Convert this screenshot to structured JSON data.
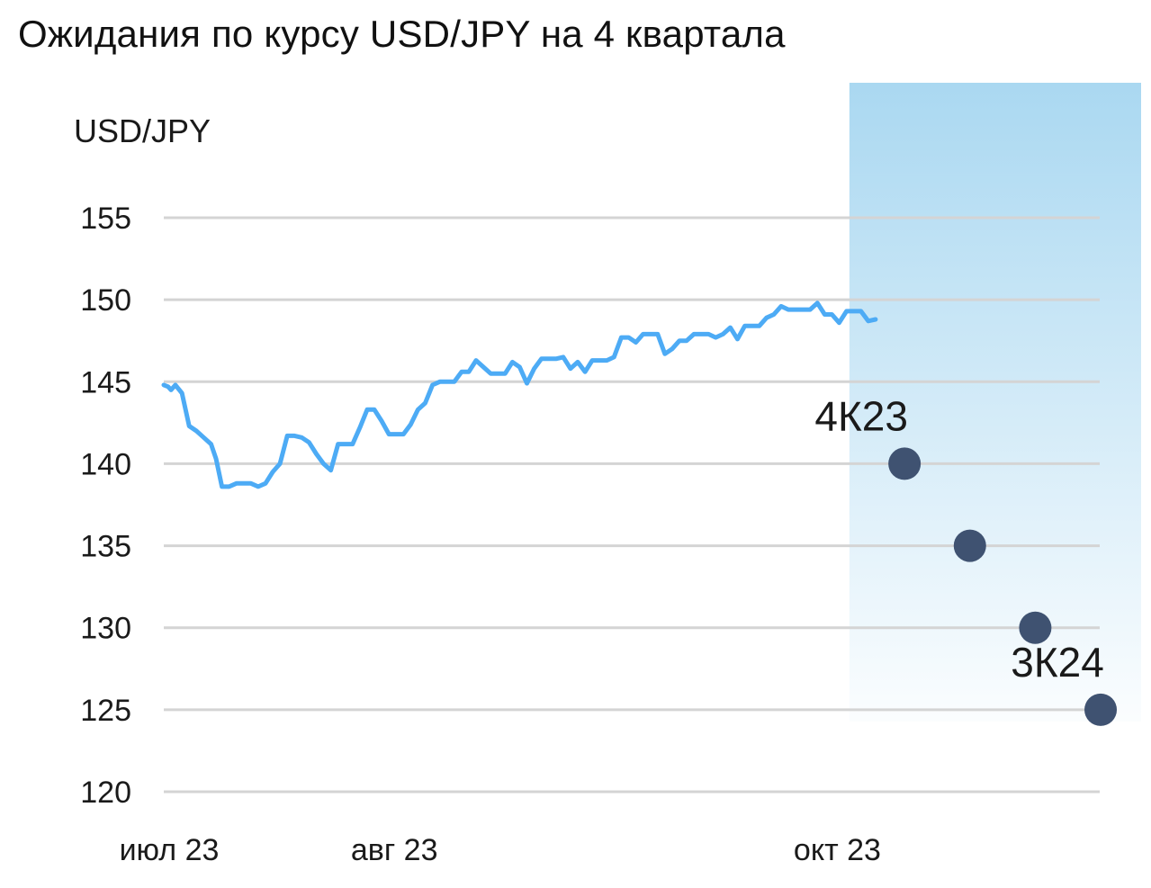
{
  "chart_data": {
    "type": "line",
    "title": "Ожидания по курсу USD/JPY на 4 квартала",
    "ylabel": "USD/JPY",
    "xlabel": "",
    "ylim": [
      120,
      155
    ],
    "y_ticks": [
      "155",
      "150",
      "145",
      "140",
      "135",
      "130",
      "125",
      "120"
    ],
    "x_ticks": [
      {
        "label": "июл 23",
        "t": 0
      },
      {
        "label": "авг 23",
        "t": 31
      },
      {
        "label": "окт 23",
        "t": 92
      }
    ],
    "grid": true,
    "series": [
      {
        "type": "line",
        "color": "#4dabf5",
        "points": [
          [
            0,
            144.8
          ],
          [
            0.6,
            144.7
          ],
          [
            1,
            144.5
          ],
          [
            1.6,
            144.8
          ],
          [
            2.5,
            144.3
          ],
          [
            3.5,
            142.3
          ],
          [
            4.5,
            142
          ],
          [
            5.5,
            141.6
          ],
          [
            6.5,
            141.2
          ],
          [
            7.2,
            140.3
          ],
          [
            8,
            138.6
          ],
          [
            9,
            138.6
          ],
          [
            10,
            138.8
          ],
          [
            11,
            138.8
          ],
          [
            12,
            138.8
          ],
          [
            13,
            138.6
          ],
          [
            14,
            138.8
          ],
          [
            15,
            139.5
          ],
          [
            16,
            140
          ],
          [
            17,
            141.7
          ],
          [
            18,
            141.7
          ],
          [
            19,
            141.6
          ],
          [
            20,
            141.3
          ],
          [
            21,
            140.6
          ],
          [
            22,
            140
          ],
          [
            23,
            139.6
          ],
          [
            24,
            141.2
          ],
          [
            25,
            141.2
          ],
          [
            26,
            141.2
          ],
          [
            27,
            142.2
          ],
          [
            28,
            143.3
          ],
          [
            29,
            143.3
          ],
          [
            30,
            142.6
          ],
          [
            31,
            141.8
          ],
          [
            32,
            141.8
          ],
          [
            33,
            141.8
          ],
          [
            34,
            142.4
          ],
          [
            35,
            143.3
          ],
          [
            36,
            143.7
          ],
          [
            37,
            144.8
          ],
          [
            38,
            145
          ],
          [
            39,
            145
          ],
          [
            40,
            145
          ],
          [
            41,
            145.6
          ],
          [
            42,
            145.6
          ],
          [
            43,
            146.3
          ],
          [
            44,
            145.9
          ],
          [
            45,
            145.5
          ],
          [
            46,
            145.5
          ],
          [
            47,
            145.5
          ],
          [
            48,
            146.2
          ],
          [
            49,
            145.9
          ],
          [
            50,
            144.9
          ],
          [
            51,
            145.8
          ],
          [
            52,
            146.4
          ],
          [
            53,
            146.4
          ],
          [
            54,
            146.4
          ],
          [
            55,
            146.5
          ],
          [
            56,
            145.8
          ],
          [
            57,
            146.2
          ],
          [
            58,
            145.6
          ],
          [
            59,
            146.3
          ],
          [
            60,
            146.3
          ],
          [
            61,
            146.3
          ],
          [
            62,
            146.5
          ],
          [
            63,
            147.7
          ],
          [
            64,
            147.7
          ],
          [
            65,
            147.4
          ],
          [
            66,
            147.9
          ],
          [
            67,
            147.9
          ],
          [
            68,
            147.9
          ],
          [
            69,
            146.7
          ],
          [
            70,
            147
          ],
          [
            71,
            147.5
          ],
          [
            72,
            147.5
          ],
          [
            73,
            147.9
          ],
          [
            74,
            147.9
          ],
          [
            75,
            147.9
          ],
          [
            76,
            147.7
          ],
          [
            77,
            147.9
          ],
          [
            78,
            148.3
          ],
          [
            79,
            147.6
          ],
          [
            80,
            148.4
          ],
          [
            81,
            148.4
          ],
          [
            82,
            148.4
          ],
          [
            83,
            148.9
          ],
          [
            84,
            149.1
          ],
          [
            85,
            149.6
          ],
          [
            86,
            149.4
          ],
          [
            87,
            149.4
          ],
          [
            88,
            149.4
          ],
          [
            89,
            149.4
          ],
          [
            90,
            149.8
          ],
          [
            91,
            149.1
          ],
          [
            92,
            149.1
          ],
          [
            93,
            148.6
          ],
          [
            94,
            149.3
          ],
          [
            95,
            149.3
          ],
          [
            96,
            149.3
          ],
          [
            97,
            148.7
          ],
          [
            98,
            148.8
          ]
        ]
      },
      {
        "type": "scatter",
        "color": "#3f5271",
        "points": [
          [
            102,
            140
          ],
          [
            111,
            135
          ],
          [
            120,
            130
          ],
          [
            129,
            125
          ]
        ]
      }
    ],
    "annotations": [
      {
        "text": "4К23",
        "t": 102,
        "y": 140
      },
      {
        "text": "3К24",
        "t": 129,
        "y": 125
      }
    ],
    "forecast_shading": {
      "from_t": 98,
      "color": "#aad8f1"
    }
  }
}
